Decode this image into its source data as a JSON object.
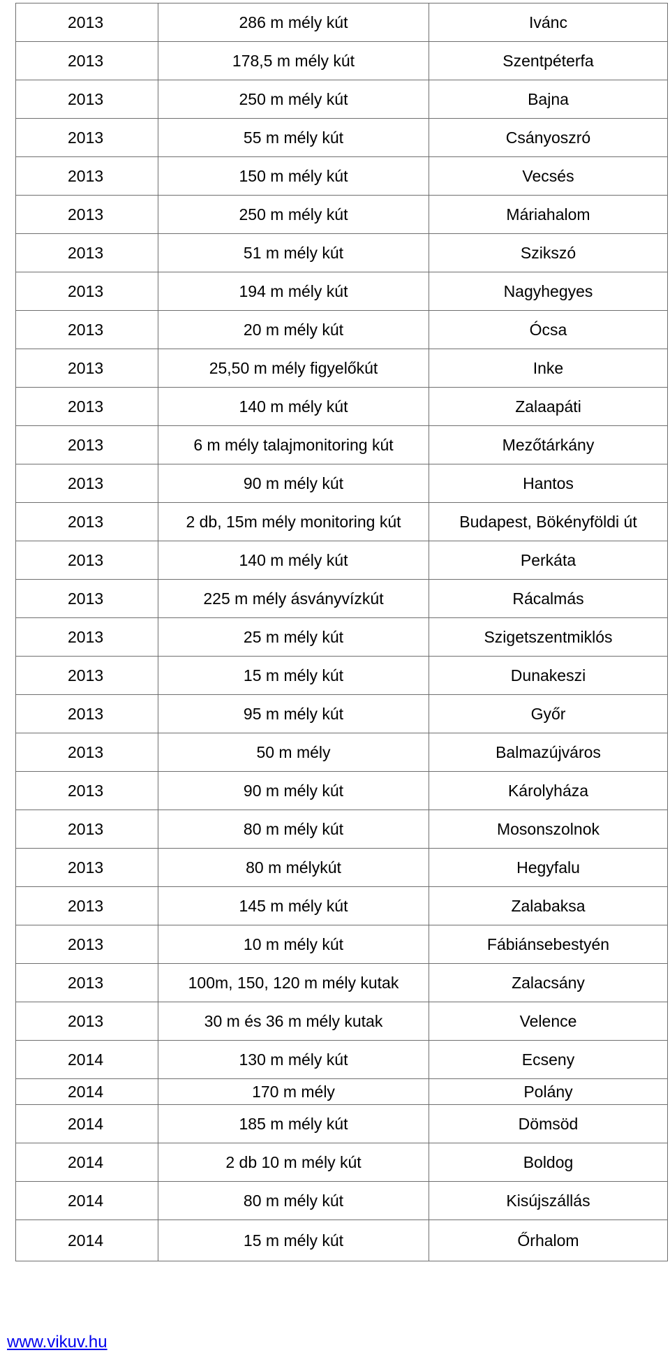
{
  "table": {
    "rows": [
      {
        "year": "2013",
        "description": "286 m mély kút",
        "location": "Ivánc"
      },
      {
        "year": "2013",
        "description": "178,5 m mély kút",
        "location": "Szentpéterfa"
      },
      {
        "year": "2013",
        "description": "250 m mély kút",
        "location": "Bajna"
      },
      {
        "year": "2013",
        "description": "55 m mély kút",
        "location": "Csányoszró"
      },
      {
        "year": "2013",
        "description": "150 m mély kút",
        "location": "Vecsés"
      },
      {
        "year": "2013",
        "description": "250 m mély kút",
        "location": "Máriahalom"
      },
      {
        "year": "2013",
        "description": "51 m mély kút",
        "location": "Szikszó"
      },
      {
        "year": "2013",
        "description": "194 m mély kút",
        "location": "Nagyhegyes"
      },
      {
        "year": "2013",
        "description": "20 m mély kút",
        "location": "Ócsa"
      },
      {
        "year": "2013",
        "description": "25,50 m mély figyelőkút",
        "location": "Inke"
      },
      {
        "year": "2013",
        "description": "140 m mély kút",
        "location": "Zalaapáti"
      },
      {
        "year": "2013",
        "description": "6 m mély talajmonitoring kút",
        "location": "Mezőtárkány"
      },
      {
        "year": "2013",
        "description": "90 m mély kút",
        "location": "Hantos"
      },
      {
        "year": "2013",
        "description": "2 db, 15m mély monitoring kút",
        "location": "Budapest, Bökényföldi út"
      },
      {
        "year": "2013",
        "description": "140 m mély kút",
        "location": "Perkáta"
      },
      {
        "year": "2013",
        "description": "225 m mély ásványvízkút",
        "location": "Rácalmás"
      },
      {
        "year": "2013",
        "description": "25 m mély kút",
        "location": "Szigetszentmiklós"
      },
      {
        "year": "2013",
        "description": "15 m mély kút",
        "location": "Dunakeszi"
      },
      {
        "year": "2013",
        "description": "95 m mély kút",
        "location": "Győr"
      },
      {
        "year": "2013",
        "description": "50 m mély",
        "location": "Balmazújváros"
      },
      {
        "year": "2013",
        "description": "90 m mély kút",
        "location": "Károlyháza"
      },
      {
        "year": "2013",
        "description": "80 m mély kút",
        "location": "Mosonszolnok"
      },
      {
        "year": "2013",
        "description": "80 m mélykút",
        "location": "Hegyfalu"
      },
      {
        "year": "2013",
        "description": "145 m mély kút",
        "location": "Zalabaksa"
      },
      {
        "year": "2013",
        "description": "10 m mély kút",
        "location": "Fábiánsebestyén"
      },
      {
        "year": "2013",
        "description": "100m, 150, 120 m mély kutak",
        "location": "Zalacsány"
      },
      {
        "year": "2013",
        "description": "30 m és 36 m mély kutak",
        "location": "Velence"
      },
      {
        "year": "2014",
        "description": "130 m mély kút",
        "location": "Ecseny"
      },
      {
        "year": "2014",
        "description": "170 m mély",
        "location": "Polány"
      },
      {
        "year": "2014",
        "description": "185 m mély kút",
        "location": "Dömsöd"
      },
      {
        "year": "2014",
        "description": "2 db 10 m mély kút",
        "location": "Boldog"
      },
      {
        "year": "2014",
        "description": "80 m mély kút",
        "location": "Kisújszállás"
      },
      {
        "year": "2014",
        "description": "15 m mély kút",
        "location": "Őrhalom"
      }
    ]
  },
  "footer": {
    "link_text": "www.vikuv.hu"
  }
}
